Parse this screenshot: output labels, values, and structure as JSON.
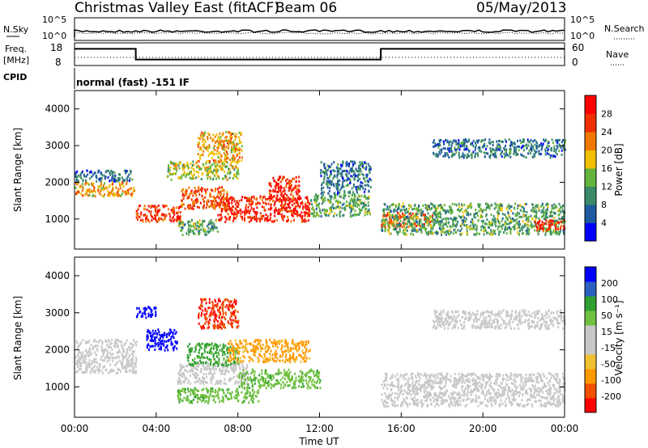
{
  "header": {
    "title": "Christmas Valley East (fitACF)",
    "beam": "Beam 06",
    "date": "05/May/2013"
  },
  "panels": {
    "nsky": {
      "label": "N.Sky",
      "y_ticks": [
        "10^5",
        "10^0"
      ],
      "right_label": "N.Search",
      "right_ticks": [
        "10^5",
        "10^0"
      ]
    },
    "freq": {
      "label_line1": "Freq.",
      "label_line2": "[MHz]",
      "y_ticks": [
        "18",
        "8"
      ],
      "right_label": "Nave",
      "right_ticks": [
        "60",
        "0"
      ]
    },
    "cpid": {
      "label": "CPID",
      "mode": "normal (fast) -151 IF"
    }
  },
  "colorbars": {
    "power": {
      "title": "Power [dB]",
      "colors": [
        "#0000ff",
        "#1e5aa0",
        "#3a8a6a",
        "#62b43c",
        "#f0c000",
        "#f07800",
        "#f03000",
        "#ff0000"
      ],
      "ticks": [
        "4",
        "8",
        "12",
        "16",
        "20",
        "24",
        "28"
      ]
    },
    "velocity": {
      "title": "Velocity [m s⁻¹]",
      "colors": [
        "#ff0000",
        "#f05000",
        "#ff9900",
        "#f0c030",
        "#c8c8c8",
        "#c8c8c8",
        "#70c040",
        "#30a030",
        "#2c60c0",
        "#0000ff"
      ],
      "ticks": [
        "-200",
        "-100",
        "-50",
        "-15",
        "15",
        "50",
        "100",
        "200"
      ]
    }
  },
  "chart_data": {
    "type": "heatmap",
    "title": "Christmas Valley East (fitACF)",
    "subtitle": "Beam 06",
    "xlabel": "Time UT",
    "ylabel": "Slant Range [km]",
    "x_ticks": [
      "00:00",
      "04:00",
      "08:00",
      "12:00",
      "16:00",
      "20:00",
      "00:00"
    ],
    "xlim_hours": [
      0,
      24
    ],
    "y_ticks": [
      1000,
      2000,
      3000,
      4000
    ],
    "ylim_km": [
      180,
      4500
    ],
    "frequency_mhz": [
      {
        "start_h": 0,
        "end_h": 3,
        "value": 16
      },
      {
        "start_h": 3,
        "end_h": 15,
        "value": 10
      },
      {
        "start_h": 15,
        "end_h": 24,
        "value": 16
      }
    ],
    "power_regions": [
      {
        "t0": 0.0,
        "t1": 2.9,
        "r0": 1650,
        "r1": 2050,
        "level": 20
      },
      {
        "t0": 0.0,
        "t1": 2.9,
        "r0": 2050,
        "r1": 2350,
        "level": 8
      },
      {
        "t0": 3.0,
        "t1": 5.2,
        "r0": 950,
        "r1": 1400,
        "level": 26
      },
      {
        "t0": 5.2,
        "t1": 7.5,
        "r0": 1300,
        "r1": 1900,
        "level": 24
      },
      {
        "t0": 7.0,
        "t1": 11.5,
        "r0": 950,
        "r1": 1650,
        "level": 28
      },
      {
        "t0": 9.5,
        "t1": 11.0,
        "r0": 1500,
        "r1": 2200,
        "level": 28
      },
      {
        "t0": 4.5,
        "t1": 8.0,
        "r0": 2100,
        "r1": 2600,
        "level": 16
      },
      {
        "t0": 6.0,
        "t1": 8.2,
        "r0": 2600,
        "r1": 3400,
        "level": 20
      },
      {
        "t0": 5.0,
        "t1": 7.0,
        "r0": 600,
        "r1": 1000,
        "level": 12
      },
      {
        "t0": 11.5,
        "t1": 14.5,
        "r0": 1100,
        "r1": 1700,
        "level": 12
      },
      {
        "t0": 12.0,
        "t1": 14.5,
        "r0": 1700,
        "r1": 2600,
        "level": 8
      },
      {
        "t0": 15.0,
        "t1": 17.5,
        "r0": 800,
        "r1": 1200,
        "level": 24
      },
      {
        "t0": 15.0,
        "t1": 24.0,
        "r0": 600,
        "r1": 1450,
        "level": 12
      },
      {
        "t0": 17.5,
        "t1": 24.0,
        "r0": 2700,
        "r1": 3200,
        "level": 8
      },
      {
        "t0": 22.5,
        "t1": 24.0,
        "r0": 700,
        "r1": 1000,
        "level": 28
      }
    ],
    "velocity_regions": [
      {
        "t0": 0.0,
        "t1": 3.0,
        "r0": 1400,
        "r1": 2300,
        "v": 0
      },
      {
        "t0": 3.5,
        "t1": 5.0,
        "r0": 2000,
        "r1": 2600,
        "v": 220
      },
      {
        "t0": 5.0,
        "t1": 8.5,
        "r0": 1100,
        "r1": 1700,
        "v": 0
      },
      {
        "t0": 5.5,
        "t1": 8.0,
        "r0": 1600,
        "r1": 2200,
        "v": 60
      },
      {
        "t0": 6.0,
        "t1": 8.0,
        "r0": 2600,
        "r1": 3400,
        "v": -200
      },
      {
        "t0": 7.5,
        "t1": 11.5,
        "r0": 1700,
        "r1": 2300,
        "v": -60
      },
      {
        "t0": 8.0,
        "t1": 12.0,
        "r0": 1000,
        "r1": 1500,
        "v": 40
      },
      {
        "t0": 5.0,
        "t1": 9.0,
        "r0": 600,
        "r1": 1000,
        "v": 40
      },
      {
        "t0": 15.0,
        "t1": 24.0,
        "r0": 500,
        "r1": 1400,
        "v": 0
      },
      {
        "t0": 17.5,
        "t1": 24.0,
        "r0": 2600,
        "r1": 3100,
        "v": 0
      },
      {
        "t0": 3.0,
        "t1": 4.0,
        "r0": 2900,
        "r1": 3200,
        "v": 220
      }
    ]
  }
}
